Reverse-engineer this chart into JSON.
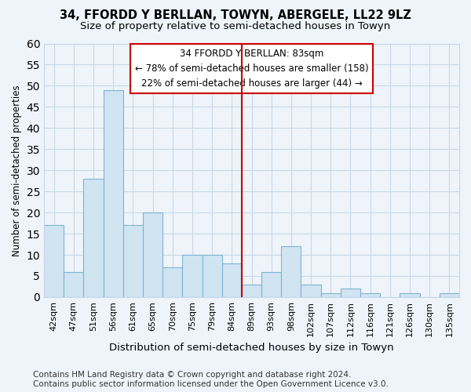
{
  "title": "34, FFORDD Y BERLLAN, TOWYN, ABERGELE, LL22 9LZ",
  "subtitle": "Size of property relative to semi-detached houses in Towyn",
  "xlabel": "Distribution of semi-detached houses by size in Towyn",
  "ylabel": "Number of semi-detached properties",
  "categories": [
    "42sqm",
    "47sqm",
    "51sqm",
    "56sqm",
    "61sqm",
    "65sqm",
    "70sqm",
    "75sqm",
    "79sqm",
    "84sqm",
    "89sqm",
    "93sqm",
    "98sqm",
    "102sqm",
    "107sqm",
    "112sqm",
    "116sqm",
    "121sqm",
    "126sqm",
    "130sqm",
    "135sqm"
  ],
  "values": [
    17,
    6,
    28,
    49,
    17,
    20,
    7,
    10,
    10,
    8,
    3,
    6,
    12,
    3,
    1,
    2,
    1,
    0,
    1,
    0,
    1
  ],
  "bar_color": "#d0e4f2",
  "bar_edge_color": "#7fb3d3",
  "grid_color": "#c8d8e8",
  "background_color": "#eef4fa",
  "vline_x_idx": 9,
  "vline_color": "#cc0000",
  "annotation_text": "34 FFORDD Y BERLLAN: 83sqm\n← 78% of semi-detached houses are smaller (158)\n22% of semi-detached houses are larger (44) →",
  "annotation_box_color": "#ffffff",
  "annotation_box_edge_color": "#cc0000",
  "ylim": [
    0,
    60
  ],
  "yticks": [
    0,
    5,
    10,
    15,
    20,
    25,
    30,
    35,
    40,
    45,
    50,
    55,
    60
  ],
  "footer_line1": "Contains HM Land Registry data © Crown copyright and database right 2024.",
  "footer_line2": "Contains public sector information licensed under the Open Government Licence v3.0.",
  "title_fontsize": 10.5,
  "subtitle_fontsize": 9.5,
  "xlabel_fontsize": 9.5,
  "ylabel_fontsize": 8.5,
  "tick_fontsize": 8,
  "annotation_fontsize": 8.5,
  "footer_fontsize": 7.5
}
